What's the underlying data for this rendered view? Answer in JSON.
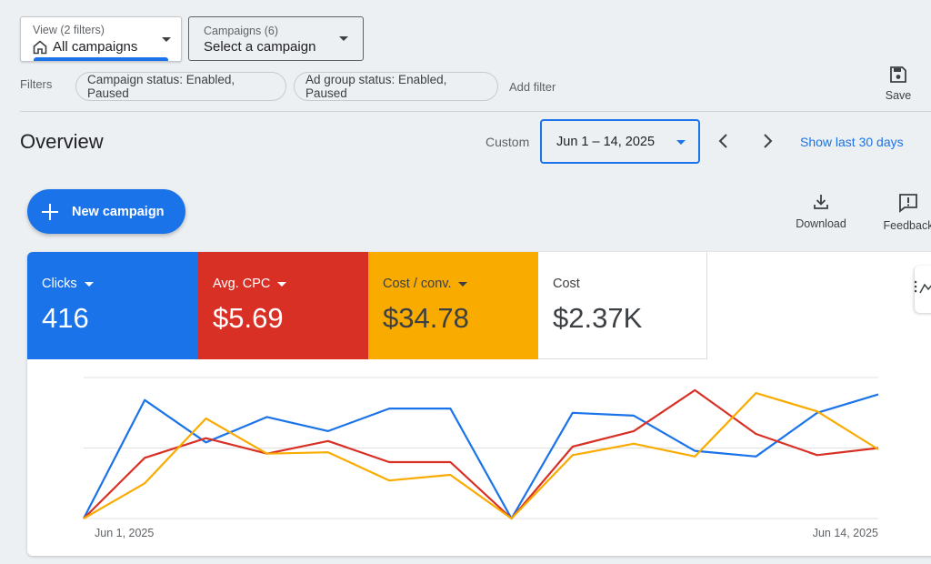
{
  "view_selector": {
    "small": "View (2 filters)",
    "label": "All campaigns"
  },
  "campaign_selector": {
    "small": "Campaigns (6)",
    "label": "Select a campaign"
  },
  "filters": {
    "label": "Filters",
    "chips": [
      "Campaign status: Enabled, Paused",
      "Ad group status: Enabled, Paused"
    ],
    "add_label": "Add filter"
  },
  "save_label": "Save",
  "overview": {
    "title": "Overview",
    "range_type": "Custom",
    "date_range": "Jun 1 – 14, 2025",
    "show_last": "Show last 30 days"
  },
  "new_campaign_label": "New campaign",
  "actions": {
    "download": "Download",
    "feedback": "Feedback"
  },
  "metrics": {
    "clicks": {
      "label": "Clicks",
      "value": "416",
      "color": "#1a73e8"
    },
    "cpc": {
      "label": "Avg. CPC",
      "value": "$5.69",
      "color": "#d93025"
    },
    "conv": {
      "label": "Cost / conv.",
      "value": "$34.78",
      "color": "#f9ab00"
    },
    "cost": {
      "label": "Cost",
      "value": "$2.37K"
    }
  },
  "chart_data": {
    "type": "line",
    "x": [
      "Jun 1, 2025",
      "Jun 2, 2025",
      "Jun 3, 2025",
      "Jun 4, 2025",
      "Jun 5, 2025",
      "Jun 6, 2025",
      "Jun 7, 2025",
      "Jun 8, 2025",
      "Jun 9, 2025",
      "Jun 10, 2025",
      "Jun 11, 2025",
      "Jun 12, 2025",
      "Jun 13, 2025",
      "Jun 14, 2025"
    ],
    "x_tick_labels": [
      "Jun 1, 2025",
      "Jun 14, 2025"
    ],
    "ylim": [
      0,
      1
    ],
    "grid": true,
    "series": [
      {
        "name": "Clicks",
        "color": "#1a73e8",
        "values": [
          0,
          0.84,
          0.54,
          0.72,
          0.62,
          0.78,
          0.78,
          0,
          0.75,
          0.73,
          0.48,
          0.44,
          0.75,
          0.88
        ]
      },
      {
        "name": "Avg. CPC",
        "color": "#d93025",
        "values": [
          0,
          0.43,
          0.57,
          0.46,
          0.55,
          0.4,
          0.4,
          0,
          0.51,
          0.62,
          0.91,
          0.6,
          0.45,
          0.5
        ]
      },
      {
        "name": "Cost / conv.",
        "color": "#f9ab00",
        "values": [
          0,
          0.25,
          0.71,
          0.46,
          0.47,
          0.27,
          0.31,
          0,
          0.45,
          0.53,
          0.44,
          0.89,
          0.76,
          0.49
        ]
      }
    ]
  }
}
